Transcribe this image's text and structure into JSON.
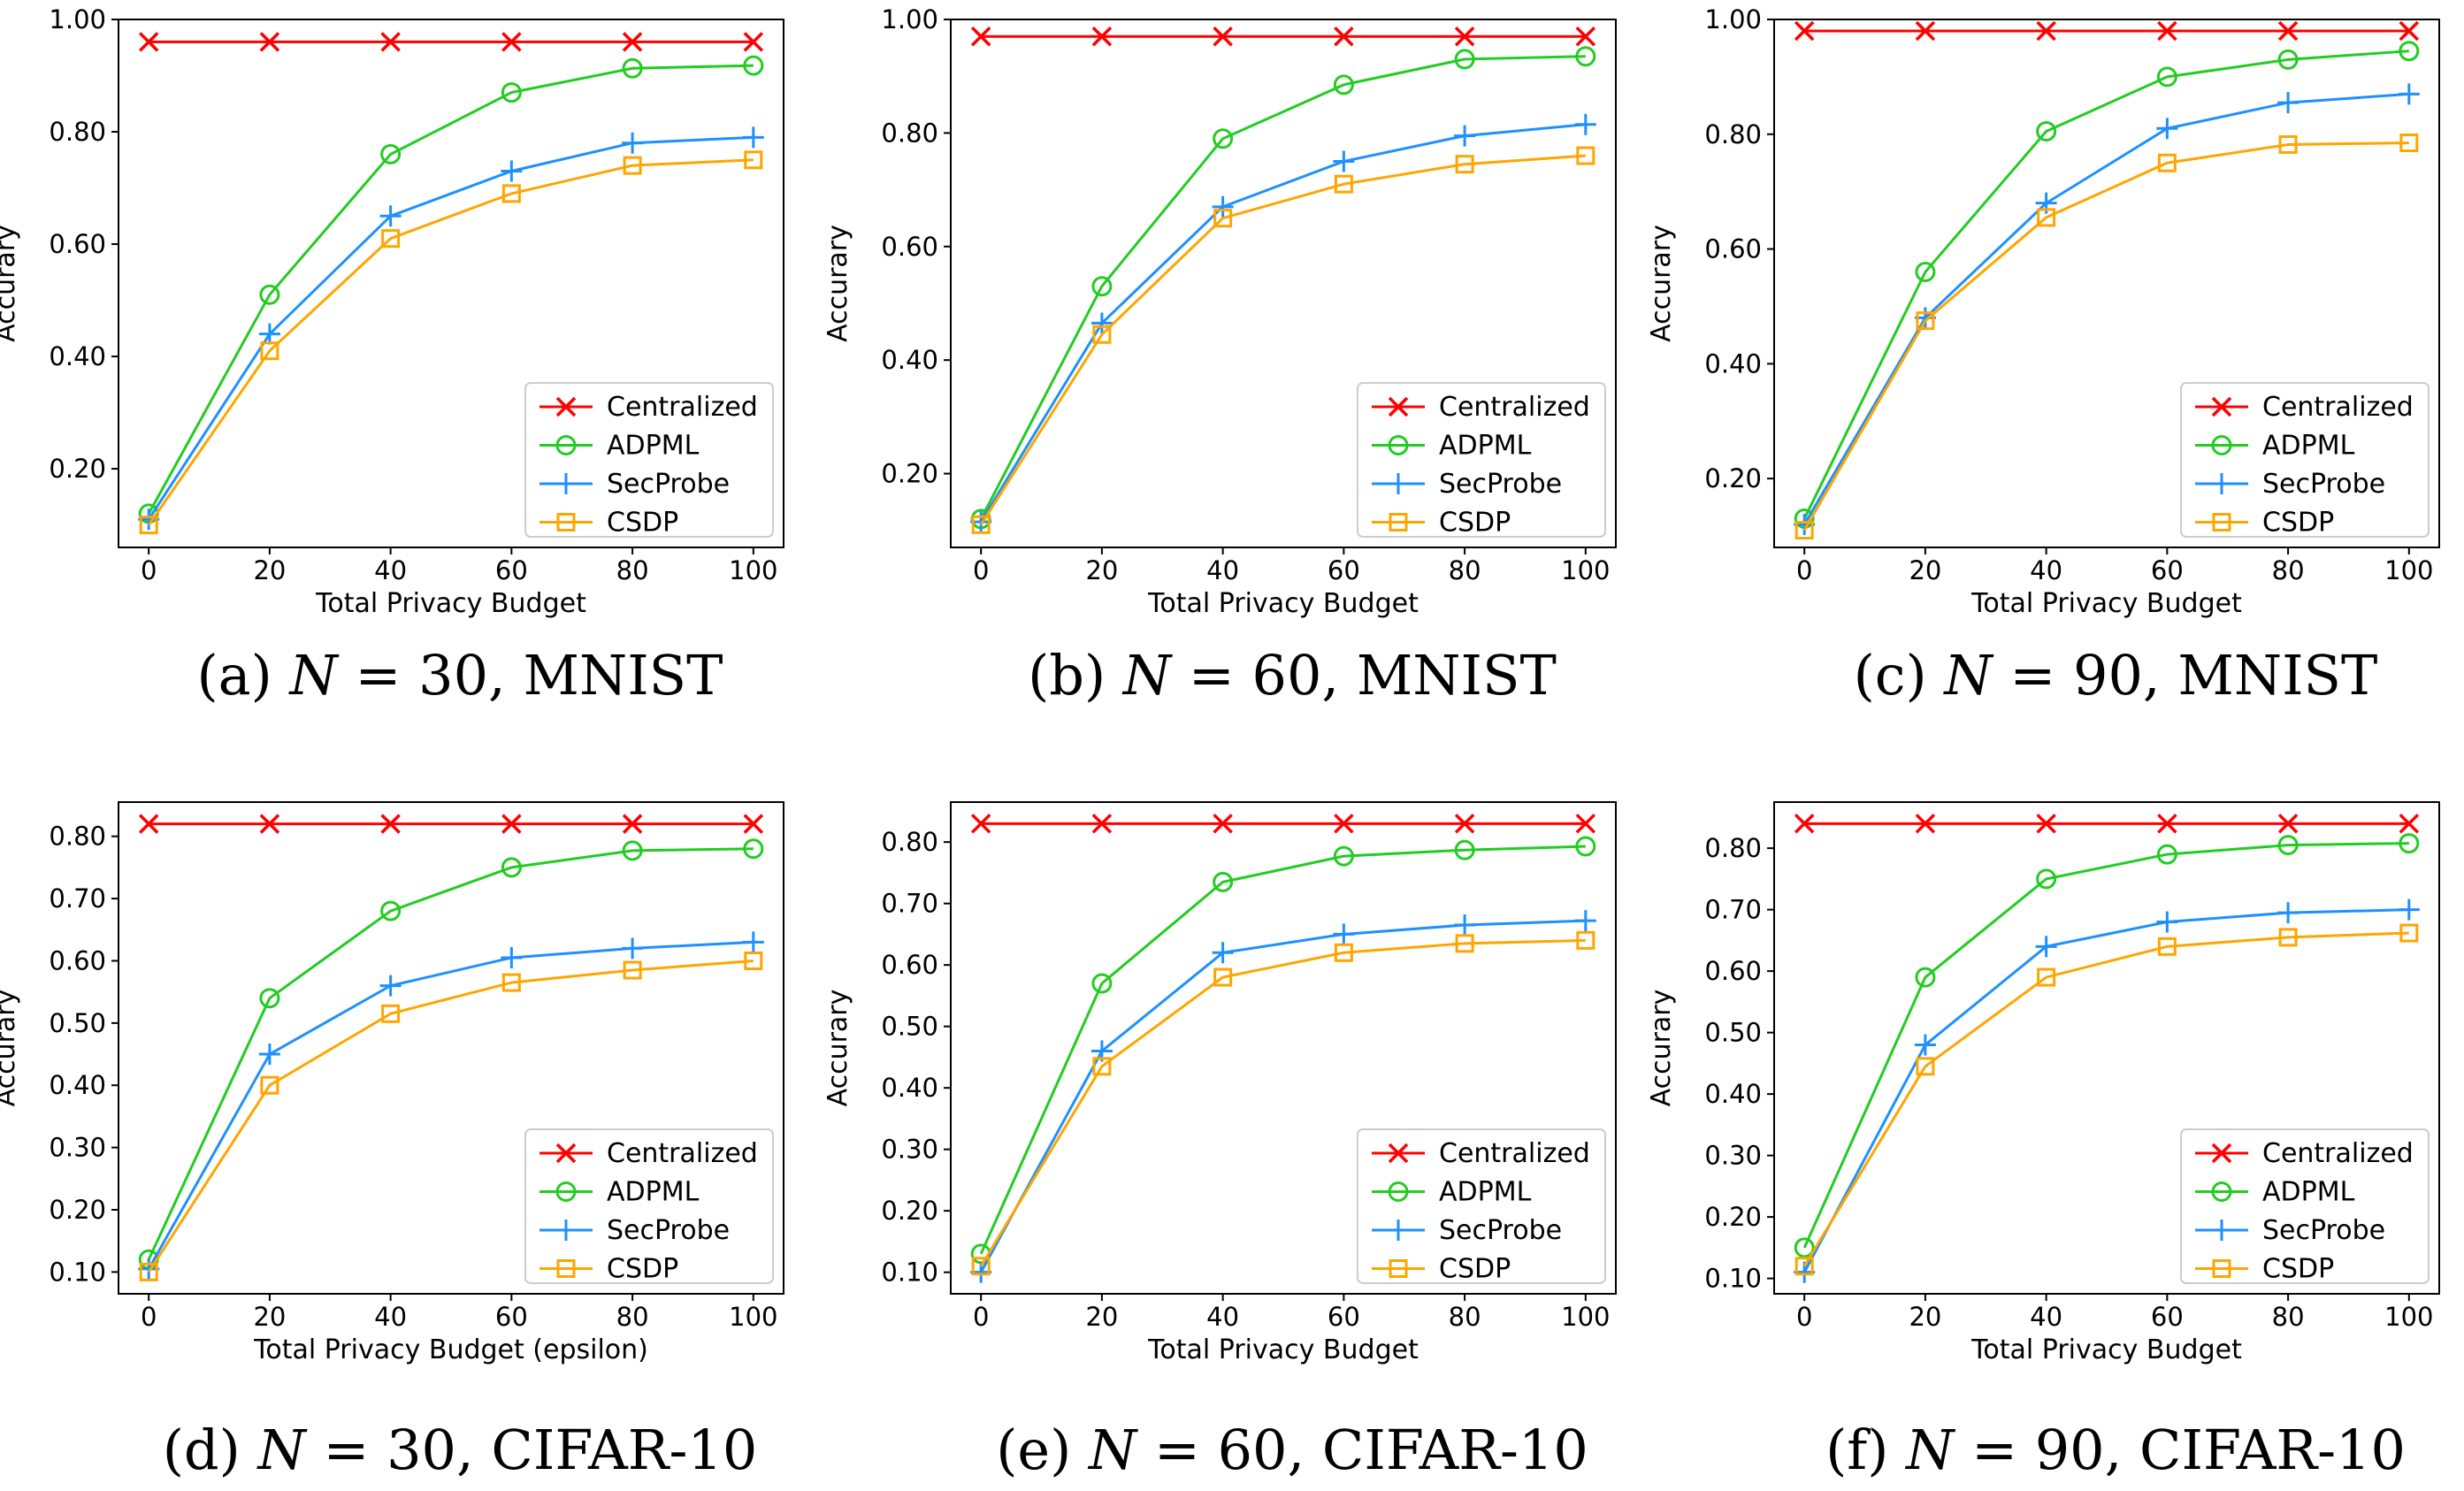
{
  "figure_captions": [
    {
      "letter": "(a)",
      "variable": "N",
      "rest": " = 30, MNIST"
    },
    {
      "letter": "(b)",
      "variable": "N",
      "rest": " = 60, MNIST"
    },
    {
      "letter": "(c)",
      "variable": "N",
      "rest": " = 90, MNIST"
    },
    {
      "letter": "(d)",
      "variable": "N",
      "rest": " = 30, CIFAR-10"
    },
    {
      "letter": "(e)",
      "variable": "N",
      "rest": " = 60, CIFAR-10"
    },
    {
      "letter": "(f)",
      "variable": "N",
      "rest": " = 90, CIFAR-10"
    }
  ],
  "series_style": [
    {
      "name": "Centralized",
      "color": "#ff0000",
      "marker": "x"
    },
    {
      "name": "ADPML",
      "color": "#22cc22",
      "marker": "o"
    },
    {
      "name": "SecProbe",
      "color": "#1e90ff",
      "marker": "+"
    },
    {
      "name": "CSDP",
      "color": "#ffa500",
      "marker": "s"
    }
  ],
  "chart_data": [
    {
      "type": "line",
      "title": "",
      "xlabel": "Total Privacy Budget",
      "ylabel": "Accurary",
      "x": [
        0,
        20,
        40,
        60,
        80,
        100
      ],
      "xticks": [
        "0",
        "20",
        "40",
        "60",
        "80",
        "100"
      ],
      "yticks": [
        "0.20",
        "0.40",
        "0.60",
        "0.80",
        "1.00"
      ],
      "ytick_values": [
        0.2,
        0.4,
        0.6,
        0.8,
        1.0
      ],
      "xlim": [
        -5,
        105
      ],
      "ylim": [
        0.06,
        1.0
      ],
      "legend_position": "lower-right",
      "series": [
        {
          "name": "Centralized",
          "values": [
            0.96,
            0.96,
            0.96,
            0.96,
            0.96,
            0.96
          ]
        },
        {
          "name": "ADPML",
          "values": [
            0.12,
            0.51,
            0.76,
            0.87,
            0.913,
            0.918
          ]
        },
        {
          "name": "SecProbe",
          "values": [
            0.11,
            0.44,
            0.65,
            0.73,
            0.78,
            0.79
          ]
        },
        {
          "name": "CSDP",
          "values": [
            0.1,
            0.41,
            0.61,
            0.69,
            0.74,
            0.75
          ]
        }
      ]
    },
    {
      "type": "line",
      "title": "",
      "xlabel": "Total Privacy Budget",
      "ylabel": "Accurary",
      "x": [
        0,
        20,
        40,
        60,
        80,
        100
      ],
      "xticks": [
        "0",
        "20",
        "40",
        "60",
        "80",
        "100"
      ],
      "yticks": [
        "0.20",
        "0.40",
        "0.60",
        "0.80",
        "1.00"
      ],
      "ytick_values": [
        0.2,
        0.4,
        0.6,
        0.8,
        1.0
      ],
      "xlim": [
        -5,
        105
      ],
      "ylim": [
        0.07,
        1.0
      ],
      "legend_position": "lower-right",
      "series": [
        {
          "name": "Centralized",
          "values": [
            0.97,
            0.97,
            0.97,
            0.97,
            0.97,
            0.97
          ]
        },
        {
          "name": "ADPML",
          "values": [
            0.12,
            0.53,
            0.79,
            0.885,
            0.93,
            0.935
          ]
        },
        {
          "name": "SecProbe",
          "values": [
            0.115,
            0.465,
            0.67,
            0.75,
            0.795,
            0.815
          ]
        },
        {
          "name": "CSDP",
          "values": [
            0.11,
            0.445,
            0.65,
            0.71,
            0.745,
            0.76
          ]
        }
      ]
    },
    {
      "type": "line",
      "title": "",
      "xlabel": "Total Privacy Budget",
      "ylabel": "Accurary",
      "x": [
        0,
        20,
        40,
        60,
        80,
        100
      ],
      "xticks": [
        "0",
        "20",
        "40",
        "60",
        "80",
        "100"
      ],
      "yticks": [
        "0.20",
        "0.40",
        "0.60",
        "0.80",
        "1.00"
      ],
      "ytick_values": [
        0.2,
        0.4,
        0.6,
        0.8,
        1.0
      ],
      "xlim": [
        -5,
        105
      ],
      "ylim": [
        0.08,
        1.0
      ],
      "legend_position": "lower-right",
      "series": [
        {
          "name": "Centralized",
          "values": [
            0.98,
            0.98,
            0.98,
            0.98,
            0.98,
            0.98
          ]
        },
        {
          "name": "ADPML",
          "values": [
            0.13,
            0.56,
            0.805,
            0.9,
            0.93,
            0.945
          ]
        },
        {
          "name": "SecProbe",
          "values": [
            0.12,
            0.48,
            0.68,
            0.81,
            0.855,
            0.87
          ]
        },
        {
          "name": "CSDP",
          "values": [
            0.11,
            0.475,
            0.655,
            0.75,
            0.782,
            0.785
          ]
        }
      ]
    },
    {
      "type": "line",
      "title": "",
      "xlabel": "Total Privacy Budget (epsilon)",
      "ylabel": "Accurary",
      "x": [
        0,
        20,
        40,
        60,
        80,
        100
      ],
      "xticks": [
        "0",
        "20",
        "40",
        "60",
        "80",
        "100"
      ],
      "yticks": [
        "0.10",
        "0.20",
        "0.30",
        "0.40",
        "0.50",
        "0.60",
        "0.70",
        "0.80"
      ],
      "ytick_values": [
        0.1,
        0.2,
        0.3,
        0.4,
        0.5,
        0.6,
        0.7,
        0.8
      ],
      "xlim": [
        -5,
        105
      ],
      "ylim": [
        0.065,
        0.855
      ],
      "legend_position": "lower-right",
      "series": [
        {
          "name": "Centralized",
          "values": [
            0.82,
            0.82,
            0.82,
            0.82,
            0.82,
            0.82
          ]
        },
        {
          "name": "ADPML",
          "values": [
            0.12,
            0.54,
            0.68,
            0.75,
            0.777,
            0.78
          ]
        },
        {
          "name": "SecProbe",
          "values": [
            0.105,
            0.45,
            0.56,
            0.605,
            0.62,
            0.63
          ]
        },
        {
          "name": "CSDP",
          "values": [
            0.1,
            0.4,
            0.515,
            0.565,
            0.585,
            0.6
          ]
        }
      ]
    },
    {
      "type": "line",
      "title": "",
      "xlabel": "Total Privacy Budget",
      "ylabel": "Accurary",
      "x": [
        0,
        20,
        40,
        60,
        80,
        100
      ],
      "xticks": [
        "0",
        "20",
        "40",
        "60",
        "80",
        "100"
      ],
      "yticks": [
        "0.10",
        "0.20",
        "0.30",
        "0.40",
        "0.50",
        "0.60",
        "0.70",
        "0.80"
      ],
      "ytick_values": [
        0.1,
        0.2,
        0.3,
        0.4,
        0.5,
        0.6,
        0.7,
        0.8
      ],
      "xlim": [
        -5,
        105
      ],
      "ylim": [
        0.065,
        0.865
      ],
      "legend_position": "lower-right",
      "series": [
        {
          "name": "Centralized",
          "values": [
            0.83,
            0.83,
            0.83,
            0.83,
            0.83,
            0.83
          ]
        },
        {
          "name": "ADPML",
          "values": [
            0.13,
            0.57,
            0.735,
            0.777,
            0.787,
            0.793
          ]
        },
        {
          "name": "SecProbe",
          "values": [
            0.1,
            0.46,
            0.62,
            0.65,
            0.665,
            0.672
          ]
        },
        {
          "name": "CSDP",
          "values": [
            0.11,
            0.435,
            0.58,
            0.62,
            0.635,
            0.64
          ]
        }
      ]
    },
    {
      "type": "line",
      "title": "",
      "xlabel": "Total Privacy Budget",
      "ylabel": "Accurary",
      "x": [
        0,
        20,
        40,
        60,
        80,
        100
      ],
      "xticks": [
        "0",
        "20",
        "40",
        "60",
        "80",
        "100"
      ],
      "yticks": [
        "0.10",
        "0.20",
        "0.30",
        "0.40",
        "0.50",
        "0.60",
        "0.70",
        "0.80"
      ],
      "ytick_values": [
        0.1,
        0.2,
        0.3,
        0.4,
        0.5,
        0.6,
        0.7,
        0.8
      ],
      "xlim": [
        -5,
        105
      ],
      "ylim": [
        0.075,
        0.875
      ],
      "legend_position": "lower-right",
      "series": [
        {
          "name": "Centralized",
          "values": [
            0.84,
            0.84,
            0.84,
            0.84,
            0.84,
            0.84
          ]
        },
        {
          "name": "ADPML",
          "values": [
            0.15,
            0.59,
            0.75,
            0.79,
            0.805,
            0.808
          ]
        },
        {
          "name": "SecProbe",
          "values": [
            0.11,
            0.48,
            0.64,
            0.68,
            0.695,
            0.7
          ]
        },
        {
          "name": "CSDP",
          "values": [
            0.12,
            0.445,
            0.59,
            0.64,
            0.655,
            0.662
          ]
        }
      ]
    }
  ]
}
